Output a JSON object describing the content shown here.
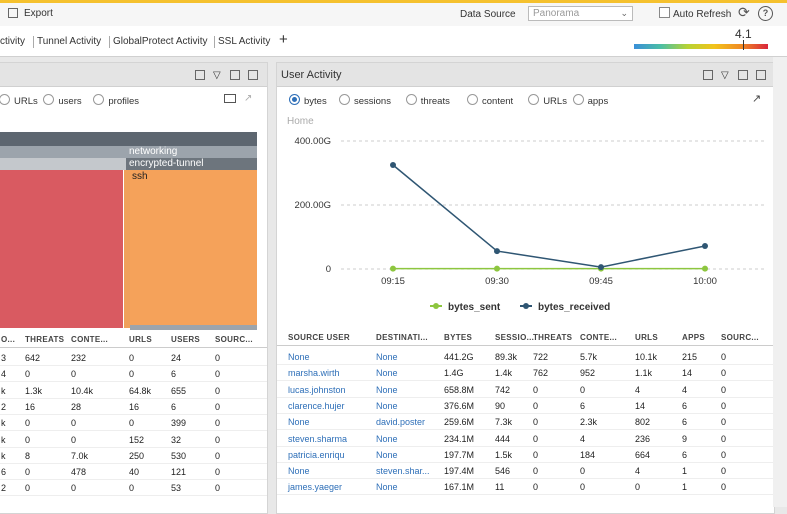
{
  "topbar": {
    "export": "Export",
    "data_source_label": "Data Source",
    "data_source_value": "Panorama",
    "auto_refresh": "Auto Refresh"
  },
  "tabs": [
    "ctivity",
    "Tunnel Activity",
    "GlobalProtect Activity",
    "SSL Activity",
    "+"
  ],
  "score": 4.1,
  "left_panel": {
    "radios": [
      "URLs",
      "users",
      "profiles"
    ],
    "treemap": {
      "labels": [
        "networking",
        "encrypted-tunnel",
        "ssh"
      ]
    },
    "table": {
      "columns": [
        "O...",
        "THREATS",
        "CONTE...",
        "URLS",
        "USERS",
        "SOURC..."
      ],
      "rows": [
        [
          "3",
          642,
          232,
          0,
          24,
          0
        ],
        [
          "4",
          0,
          0,
          0,
          6,
          0
        ],
        [
          "k",
          "1.3k",
          "10.4k",
          "64.8k",
          655,
          0
        ],
        [
          "2",
          16,
          28,
          16,
          6,
          0
        ],
        [
          "k",
          0,
          0,
          0,
          399,
          0
        ],
        [
          "k",
          0,
          0,
          152,
          32,
          0
        ],
        [
          "k",
          8,
          "7.0k",
          250,
          530,
          0
        ],
        [
          "6",
          0,
          478,
          40,
          121,
          0
        ],
        [
          "2",
          0,
          0,
          0,
          53,
          0
        ]
      ]
    }
  },
  "user_activity": {
    "title": "User Activity",
    "radios": [
      "bytes",
      "sessions",
      "threats",
      "content",
      "URLs",
      "apps"
    ],
    "breadcrumb": "Home",
    "chart_data": {
      "type": "line",
      "categories": [
        "09:15",
        "09:30",
        "09:45",
        "10:00"
      ],
      "series": [
        {
          "name": "bytes_sent",
          "color": "#8dc63f",
          "values": [
            1,
            1,
            1,
            1
          ]
        },
        {
          "name": "bytes_received",
          "color": "#2f5673",
          "values": [
            325,
            56,
            6,
            72
          ]
        }
      ],
      "ylim": [
        0,
        400
      ],
      "yticks": [
        0,
        {
          "value": 200,
          "label": "200.00G"
        },
        {
          "value": 400,
          "label": "400.00G"
        }
      ],
      "grid": true
    },
    "table": {
      "columns": [
        "SOURCE USER",
        "DESTINATI...",
        "BYTES",
        "SESSIO...",
        "THREATS",
        "CONTE...",
        "URLS",
        "APPS",
        "SOURC..."
      ],
      "rows": [
        [
          "None",
          "None",
          "441.2G",
          "89.3k",
          722,
          "5.7k",
          "10.1k",
          215,
          0
        ],
        [
          "marsha.wirth",
          "None",
          "1.4G",
          "1.4k",
          762,
          952,
          "1.1k",
          14,
          0
        ],
        [
          "lucas.johnston",
          "None",
          "658.8M",
          742,
          0,
          0,
          4,
          4,
          0
        ],
        [
          "clarence.hujer",
          "None",
          "376.6M",
          90,
          0,
          6,
          14,
          6,
          0
        ],
        [
          "None",
          "david.poster",
          "259.6M",
          "7.3k",
          0,
          "2.3k",
          802,
          6,
          0
        ],
        [
          "steven.sharma",
          "None",
          "234.1M",
          444,
          0,
          4,
          236,
          9,
          0
        ],
        [
          "patricia.enriqu",
          "None",
          "197.7M",
          "1.5k",
          0,
          184,
          664,
          6,
          0
        ],
        [
          "None",
          "steven.shar...",
          "197.4M",
          546,
          0,
          0,
          4,
          1,
          0
        ],
        [
          "james.yaeger",
          "None",
          "167.1M",
          11,
          0,
          0,
          0,
          1,
          0
        ]
      ]
    }
  }
}
